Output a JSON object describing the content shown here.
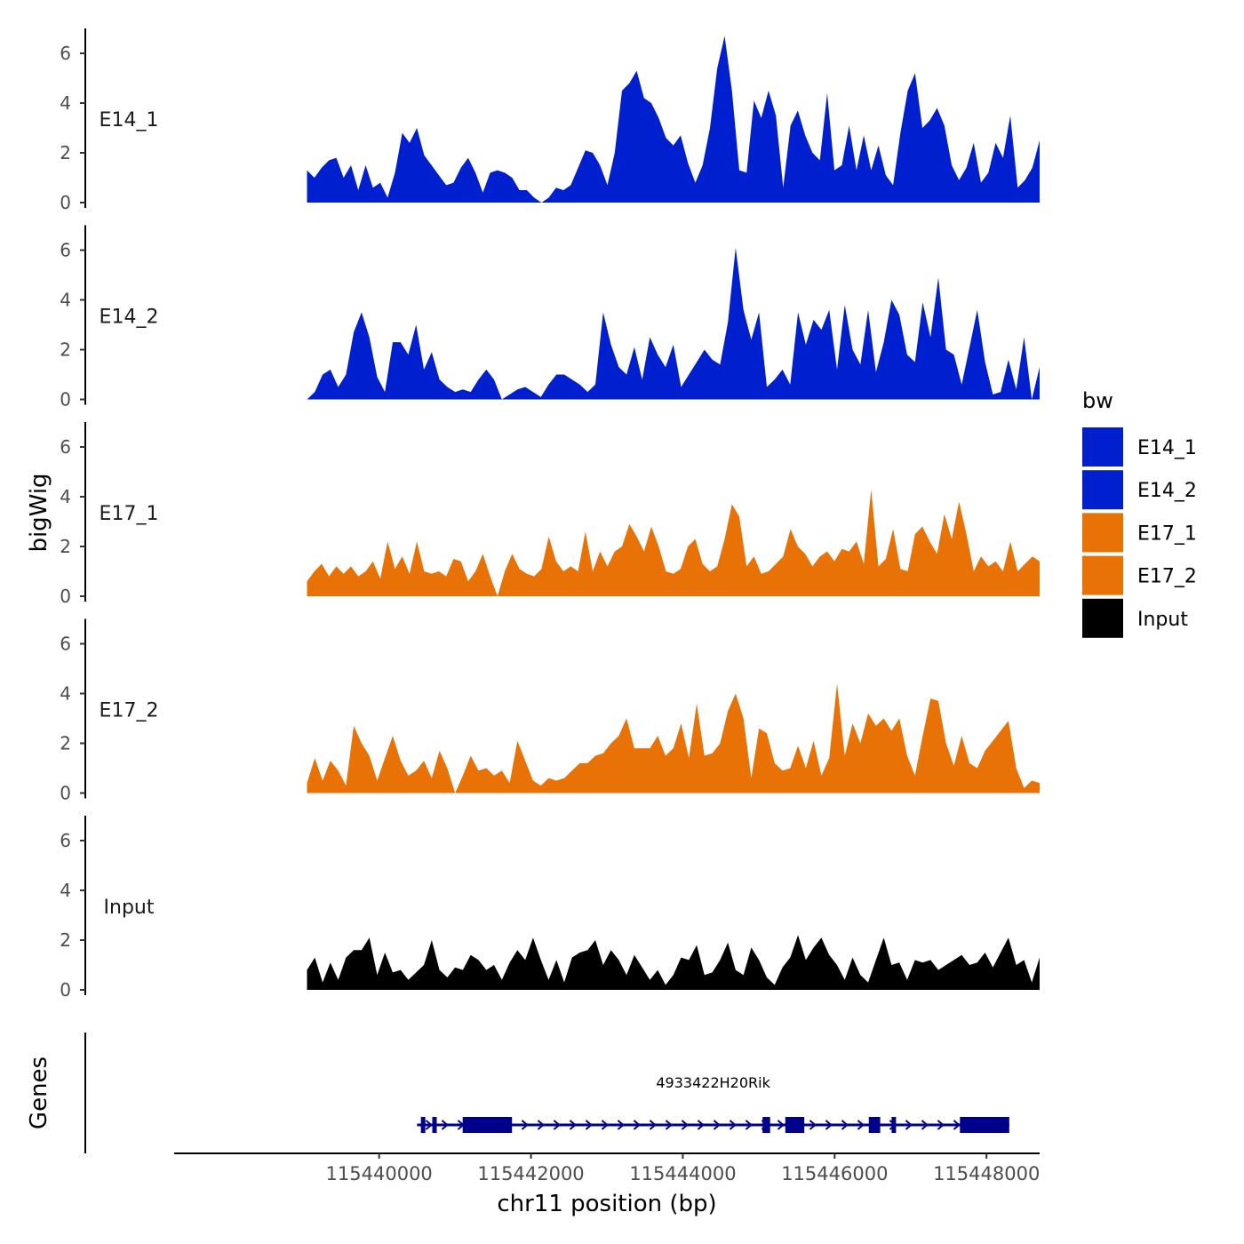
{
  "chart_data": {
    "type": "area",
    "ylabel": "bigWig",
    "xlabel": "chr11 position (bp)",
    "tracks_ylim": [
      0,
      7
    ],
    "yticks": [
      0,
      2,
      4,
      6
    ],
    "xlim": [
      115437300,
      115448700
    ],
    "xticks": [
      115440000,
      115442000,
      115444000,
      115446000,
      115448000
    ],
    "data_range": [
      115439050,
      115448700
    ],
    "series": [
      {
        "name": "E14_1",
        "color": "#0020D0",
        "values": [
          1.3,
          1.0,
          1.4,
          1.7,
          1.8,
          1.0,
          1.5,
          0.5,
          1.5,
          0.6,
          0.8,
          0.2,
          1.2,
          2.8,
          2.4,
          3.0,
          1.9,
          1.5,
          1.1,
          0.7,
          0.8,
          1.4,
          1.8,
          1.2,
          0.4,
          1.2,
          1.3,
          1.2,
          1.0,
          0.5,
          0.5,
          0.2,
          0.0,
          0.2,
          0.6,
          0.5,
          0.7,
          1.4,
          2.1,
          2.0,
          1.5,
          0.7,
          2.0,
          4.5,
          4.8,
          5.3,
          4.2,
          4.0,
          3.4,
          2.6,
          2.3,
          2.7,
          1.6,
          0.8,
          1.5,
          3.0,
          5.4,
          6.7,
          4.5,
          1.3,
          1.2,
          4.1,
          3.4,
          4.5,
          3.5,
          0.6,
          3.1,
          3.7,
          2.7,
          2.0,
          1.7,
          4.4,
          1.3,
          1.5,
          3.1,
          1.3,
          2.7,
          1.3,
          2.3,
          1.1,
          0.7,
          2.8,
          4.5,
          5.2,
          3.0,
          3.3,
          3.8,
          3.1,
          1.5,
          0.9,
          1.4,
          2.4,
          0.8,
          1.2,
          2.4,
          1.8,
          3.5,
          0.6,
          0.9,
          1.4,
          2.5
        ]
      },
      {
        "name": "E14_2",
        "color": "#0020D0",
        "values": [
          0.0,
          0.3,
          1.0,
          1.2,
          0.5,
          1.0,
          2.7,
          3.5,
          2.5,
          0.9,
          0.3,
          2.3,
          2.3,
          1.8,
          3.0,
          1.2,
          1.9,
          0.8,
          0.5,
          0.3,
          0.4,
          0.3,
          0.8,
          1.2,
          0.8,
          0.0,
          0.2,
          0.4,
          0.5,
          0.3,
          0.1,
          0.6,
          1.0,
          1.0,
          0.8,
          0.6,
          0.3,
          0.6,
          3.5,
          2.2,
          1.3,
          1.0,
          2.1,
          0.8,
          2.5,
          1.8,
          1.3,
          2.2,
          0.5,
          1.0,
          1.5,
          2.0,
          1.6,
          1.4,
          3.1,
          6.1,
          3.6,
          2.4,
          3.5,
          0.5,
          0.8,
          1.2,
          0.6,
          3.5,
          2.2,
          3.2,
          2.8,
          3.6,
          1.2,
          3.8,
          2.0,
          1.4,
          3.6,
          1.1,
          2.3,
          4.0,
          3.4,
          1.8,
          1.5,
          3.9,
          2.5,
          4.9,
          2.0,
          1.8,
          0.6,
          2.1,
          3.6,
          1.5,
          0.2,
          0.3,
          1.6,
          0.4,
          2.5,
          0.0,
          1.3
        ]
      },
      {
        "name": "E17_1",
        "color": "#E87205",
        "values": [
          0.6,
          1.0,
          1.3,
          0.8,
          1.2,
          0.9,
          1.2,
          0.8,
          1.0,
          1.4,
          0.7,
          2.2,
          1.1,
          1.6,
          0.9,
          2.2,
          1.0,
          0.9,
          1.0,
          0.8,
          1.5,
          1.4,
          0.6,
          1.0,
          1.7,
          0.8,
          0.0,
          1.0,
          1.7,
          1.1,
          0.9,
          0.8,
          1.1,
          2.4,
          1.4,
          1.0,
          1.2,
          1.0,
          2.6,
          1.0,
          1.8,
          1.2,
          1.8,
          2.0,
          2.9,
          2.4,
          1.8,
          2.8,
          2.0,
          1.0,
          0.9,
          1.1,
          2.0,
          2.3,
          1.3,
          1.0,
          1.2,
          2.3,
          3.7,
          3.2,
          1.2,
          1.6,
          0.9,
          1.0,
          1.3,
          1.6,
          2.7,
          2.0,
          1.7,
          1.2,
          1.6,
          1.8,
          1.4,
          1.9,
          1.8,
          2.2,
          1.3,
          4.3,
          1.2,
          1.5,
          2.7,
          1.1,
          1.0,
          2.5,
          2.8,
          2.2,
          1.7,
          3.3,
          2.3,
          3.8,
          2.5,
          1.0,
          1.6,
          1.2,
          1.4,
          1.0,
          2.2,
          1.0,
          1.3,
          1.6,
          1.4
        ]
      },
      {
        "name": "E17_2",
        "color": "#E87205",
        "values": [
          0.4,
          1.4,
          0.5,
          1.3,
          0.9,
          0.3,
          2.7,
          2.0,
          1.5,
          0.5,
          1.4,
          2.3,
          1.3,
          0.7,
          0.9,
          1.3,
          0.6,
          1.7,
          1.0,
          0.0,
          0.7,
          1.5,
          0.9,
          1.0,
          0.7,
          0.9,
          0.4,
          2.1,
          1.3,
          0.5,
          0.3,
          0.6,
          0.5,
          0.6,
          0.9,
          1.2,
          1.2,
          1.5,
          1.6,
          2.0,
          2.3,
          3.0,
          1.8,
          1.8,
          1.8,
          2.3,
          1.5,
          1.8,
          2.8,
          1.4,
          3.6,
          1.5,
          1.6,
          2.0,
          3.3,
          4.0,
          3.0,
          0.6,
          2.6,
          2.4,
          1.2,
          0.9,
          1.0,
          1.9,
          1.0,
          2.1,
          0.7,
          1.4,
          4.4,
          1.5,
          2.8,
          2.0,
          3.2,
          2.7,
          3.0,
          2.5,
          3.0,
          1.5,
          0.7,
          2.3,
          3.8,
          3.7,
          2.0,
          1.1,
          2.3,
          1.2,
          1.0,
          1.7,
          2.1,
          2.5,
          2.9,
          1.0,
          0.2,
          0.5,
          0.4
        ]
      },
      {
        "name": "Input",
        "color": "#000000",
        "values": [
          0.8,
          1.3,
          0.3,
          1.1,
          0.4,
          1.3,
          1.6,
          1.6,
          2.1,
          0.6,
          1.5,
          0.7,
          0.8,
          0.4,
          0.7,
          1.0,
          2.0,
          0.8,
          0.5,
          0.9,
          0.8,
          1.4,
          1.2,
          0.8,
          1.0,
          0.4,
          1.1,
          1.6,
          1.2,
          2.1,
          1.2,
          0.4,
          1.2,
          0.3,
          1.3,
          1.5,
          1.6,
          2.0,
          1.0,
          1.6,
          1.2,
          0.6,
          1.4,
          0.9,
          0.4,
          0.8,
          0.2,
          0.6,
          1.3,
          1.2,
          1.8,
          0.6,
          0.7,
          1.2,
          1.9,
          0.8,
          0.6,
          1.7,
          1.2,
          0.5,
          0.2,
          0.9,
          1.3,
          2.2,
          1.2,
          1.7,
          2.1,
          1.4,
          1.0,
          0.4,
          1.3,
          0.6,
          0.3,
          1.2,
          2.1,
          1.0,
          1.1,
          0.4,
          1.2,
          1.1,
          1.2,
          0.8,
          1.0,
          1.2,
          1.4,
          1.0,
          1.1,
          1.5,
          0.9,
          1.5,
          2.1,
          1.0,
          1.2,
          0.3,
          1.3
        ]
      }
    ],
    "genes_track": {
      "label": "Genes",
      "gene_name": "4933422H20Rik",
      "color": "#00008B",
      "start": 115440500,
      "end": 115448300,
      "strand": "+",
      "exons": [
        [
          115440550,
          115440600
        ],
        [
          115440700,
          115440750
        ],
        [
          115441100,
          115441750
        ],
        [
          115445050,
          115445150
        ],
        [
          115445350,
          115445600
        ],
        [
          115446450,
          115446600
        ],
        [
          115446750,
          115446800
        ],
        [
          115447650,
          115448300
        ]
      ]
    },
    "legend": {
      "title": "bw",
      "position": "right",
      "entries": [
        {
          "label": "E14_1",
          "color": "#0020D0"
        },
        {
          "label": "E14_2",
          "color": "#0020D0"
        },
        {
          "label": "E17_1",
          "color": "#E87205"
        },
        {
          "label": "E17_2",
          "color": "#E87205"
        },
        {
          "label": "Input",
          "color": "#000000"
        }
      ]
    }
  }
}
